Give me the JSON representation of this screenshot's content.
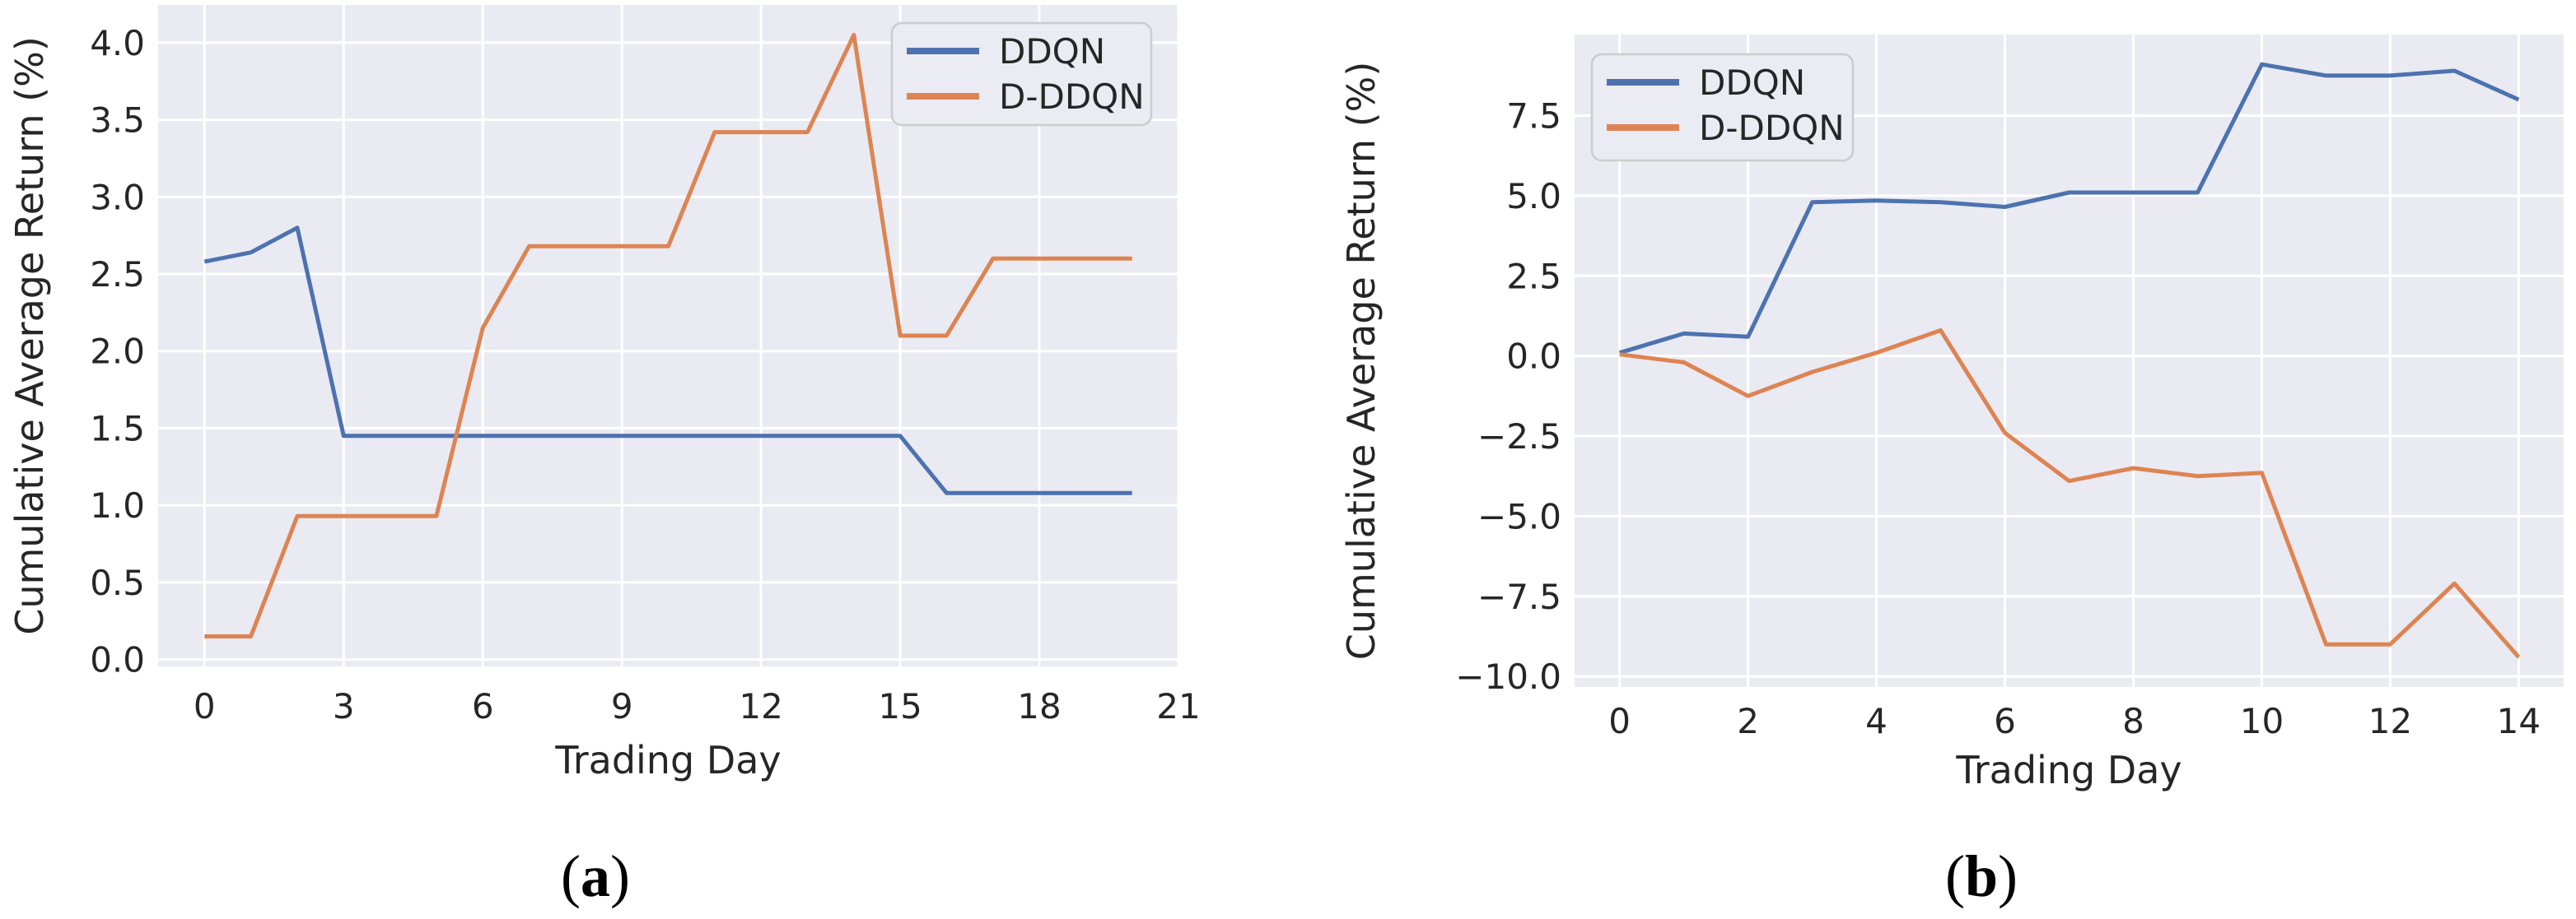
{
  "figure": {
    "captions": [
      {
        "open": "(",
        "letter": "a",
        "close": ")"
      },
      {
        "open": "(",
        "letter": "b",
        "close": ")"
      }
    ]
  },
  "colors": {
    "page_bg": "#ffffff",
    "plot_bg": "#eaeaf2",
    "grid": "#ffffff",
    "text": "#262626",
    "ddqn_blue": "#4c72b0",
    "dddqn_orange": "#dd8452",
    "legend_bg": "#ebebf3",
    "legend_border": "#cccccc"
  },
  "chart_data": [
    {
      "type": "line",
      "panel": "a",
      "xlabel": "Trading Day",
      "ylabel": "Cumulative Average Return (%)",
      "legend_position": "upper right",
      "grid": true,
      "xlim": [
        -1,
        21
      ],
      "ylim": [
        -0.045,
        4.245
      ],
      "xticks": {
        "values": [
          0,
          3,
          6,
          9,
          12,
          15,
          18,
          21
        ],
        "labels": [
          "0",
          "3",
          "6",
          "9",
          "12",
          "15",
          "18",
          "21"
        ]
      },
      "yticks": {
        "values": [
          0.0,
          0.5,
          1.0,
          1.5,
          2.0,
          2.5,
          3.0,
          3.5,
          4.0
        ],
        "labels": [
          "0.0",
          "0.5",
          "1.0",
          "1.5",
          "2.0",
          "2.5",
          "3.0",
          "3.5",
          "4.0"
        ]
      },
      "x": [
        0,
        1,
        2,
        3,
        4,
        5,
        6,
        7,
        8,
        9,
        10,
        11,
        12,
        13,
        14,
        15,
        16,
        17,
        18,
        19,
        20
      ],
      "series": [
        {
          "name": "DDQN",
          "color": "#4c72b0",
          "values": [
            2.58,
            2.64,
            2.8,
            1.45,
            1.45,
            1.45,
            1.45,
            1.45,
            1.45,
            1.45,
            1.45,
            1.45,
            1.45,
            1.45,
            1.45,
            1.45,
            1.08,
            1.08,
            1.08,
            1.08,
            1.08
          ]
        },
        {
          "name": "D-DDQN",
          "color": "#dd8452",
          "values": [
            0.15,
            0.15,
            0.93,
            0.93,
            0.93,
            0.93,
            2.15,
            2.68,
            2.68,
            2.68,
            2.68,
            3.42,
            3.42,
            3.42,
            4.05,
            2.1,
            2.1,
            2.6,
            2.6,
            2.6,
            2.6
          ]
        }
      ]
    },
    {
      "type": "line",
      "panel": "b",
      "xlabel": "Trading Day",
      "ylabel": "Cumulative Average Return (%)",
      "legend_position": "upper left",
      "grid": true,
      "xlim": [
        -0.7,
        14.7
      ],
      "ylim": [
        -10.33,
        10.03
      ],
      "xticks": {
        "values": [
          0,
          2,
          4,
          6,
          8,
          10,
          12,
          14
        ],
        "labels": [
          "0",
          "2",
          "4",
          "6",
          "8",
          "10",
          "12",
          "14"
        ]
      },
      "yticks": {
        "values": [
          -10.0,
          -7.5,
          -5.0,
          -2.5,
          0.0,
          2.5,
          5.0,
          7.5
        ],
        "labels": [
          "−10.0",
          "−7.5",
          "−5.0",
          "−2.5",
          "0.0",
          "2.5",
          "5.0",
          "7.5"
        ]
      },
      "x": [
        0,
        1,
        2,
        3,
        4,
        5,
        6,
        7,
        8,
        9,
        10,
        11,
        12,
        13,
        14
      ],
      "series": [
        {
          "name": "DDQN",
          "color": "#4c72b0",
          "values": [
            0.1,
            0.7,
            0.6,
            4.8,
            4.85,
            4.8,
            4.65,
            5.1,
            5.1,
            5.1,
            9.1,
            8.75,
            8.75,
            8.9,
            8.0
          ]
        },
        {
          "name": "D-DDQN",
          "color": "#dd8452",
          "values": [
            0.05,
            -0.2,
            -1.25,
            -0.5,
            0.1,
            0.8,
            -2.4,
            -3.9,
            -3.5,
            -3.75,
            -3.65,
            -9.0,
            -9.0,
            -7.1,
            -9.4
          ]
        }
      ]
    }
  ]
}
